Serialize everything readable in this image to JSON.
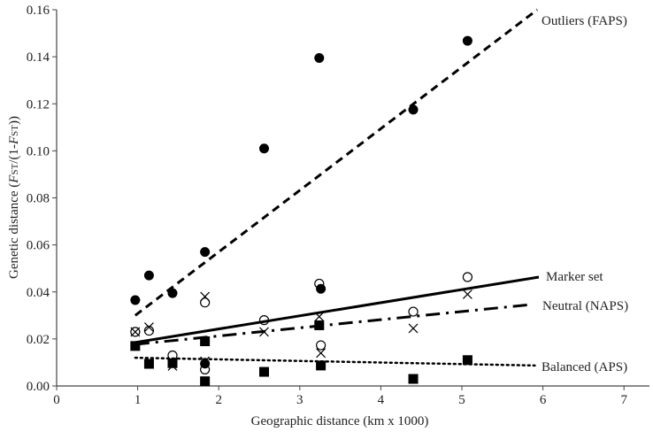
{
  "chart_data": {
    "type": "scatter",
    "title": "",
    "xlabel": "Geographic distance (km x 1000)",
    "ylabel": "Genetic distance (FST/(1-FST))",
    "xlim": [
      0,
      7.5
    ],
    "ylim": [
      0,
      0.16
    ],
    "x_ticks": [
      "0",
      "1",
      "2",
      "3",
      "4",
      "5",
      "6",
      "7"
    ],
    "y_ticks": [
      "0.00",
      "0.02",
      "0.04",
      "0.06",
      "0.08",
      "0.10",
      "0.12",
      "0.14",
      "0.16"
    ],
    "grid": false,
    "legend_position": "inline-right",
    "series": [
      {
        "name": "Outliers (FAPS)",
        "marker": "filled-circle",
        "line_style": "dashed",
        "points": [
          {
            "x": 0.97,
            "y": 0.0365
          },
          {
            "x": 1.14,
            "y": 0.047
          },
          {
            "x": 1.43,
            "y": 0.0395
          },
          {
            "x": 1.83,
            "y": 0.057
          },
          {
            "x": 1.83,
            "y": 0.0095
          },
          {
            "x": 2.56,
            "y": 0.101
          },
          {
            "x": 3.24,
            "y": 0.1395
          },
          {
            "x": 3.26,
            "y": 0.0413
          },
          {
            "x": 4.4,
            "y": 0.1175
          },
          {
            "x": 5.07,
            "y": 0.1468
          }
        ],
        "trend": {
          "x0": 0.97,
          "y0": 0.03,
          "x1": 5.93,
          "y1": 0.16
        }
      },
      {
        "name": "Marker set",
        "marker": "open-circle",
        "line_style": "solid",
        "points": [
          {
            "x": 0.97,
            "y": 0.023
          },
          {
            "x": 1.14,
            "y": 0.0235
          },
          {
            "x": 1.43,
            "y": 0.013
          },
          {
            "x": 1.83,
            "y": 0.0355
          },
          {
            "x": 1.83,
            "y": 0.007
          },
          {
            "x": 2.56,
            "y": 0.028
          },
          {
            "x": 3.24,
            "y": 0.0435
          },
          {
            "x": 3.26,
            "y": 0.0173
          },
          {
            "x": 4.4,
            "y": 0.0316
          },
          {
            "x": 5.07,
            "y": 0.0463
          }
        ],
        "trend": {
          "x0": 0.97,
          "y0": 0.0185,
          "x1": 5.95,
          "y1": 0.0463
        }
      },
      {
        "name": "Neutral (NAPS)",
        "marker": "cross",
        "line_style": "dash-dot",
        "points": [
          {
            "x": 0.97,
            "y": 0.023
          },
          {
            "x": 1.14,
            "y": 0.025
          },
          {
            "x": 1.43,
            "y": 0.0085
          },
          {
            "x": 1.83,
            "y": 0.038
          },
          {
            "x": 1.83,
            "y": 0.0105
          },
          {
            "x": 2.56,
            "y": 0.023
          },
          {
            "x": 3.24,
            "y": 0.0295
          },
          {
            "x": 3.26,
            "y": 0.014
          },
          {
            "x": 4.4,
            "y": 0.0245
          },
          {
            "x": 5.07,
            "y": 0.039
          }
        ],
        "trend": {
          "x0": 0.97,
          "y0": 0.0177,
          "x1": 5.85,
          "y1": 0.0346
        }
      },
      {
        "name": "Balanced (APS)",
        "marker": "filled-square",
        "line_style": "dotted",
        "points": [
          {
            "x": 0.97,
            "y": 0.017
          },
          {
            "x": 1.14,
            "y": 0.0094
          },
          {
            "x": 1.43,
            "y": 0.0097
          },
          {
            "x": 1.83,
            "y": 0.019
          },
          {
            "x": 1.83,
            "y": 0.002
          },
          {
            "x": 2.56,
            "y": 0.006
          },
          {
            "x": 3.24,
            "y": 0.0258
          },
          {
            "x": 3.26,
            "y": 0.0087
          },
          {
            "x": 4.4,
            "y": 0.003
          },
          {
            "x": 5.07,
            "y": 0.011
          }
        ],
        "trend": {
          "x0": 0.97,
          "y0": 0.012,
          "x1": 5.9,
          "y1": 0.0087
        }
      }
    ],
    "annotations": [
      {
        "text": "Outliers (FAPS)",
        "x": 6.35,
        "y": 0.155
      },
      {
        "text": "Marker set",
        "x": 6.35,
        "y": 0.0465
      },
      {
        "text": "Neutral (NAPS)",
        "x": 6.35,
        "y": 0.0345
      },
      {
        "text": "Balanced (APS)",
        "x": 6.35,
        "y": 0.0085
      }
    ]
  },
  "axes": {
    "xlabel": "Geographic distance (km x 1000)",
    "ylabel_prefix": "Genetic distance (",
    "ylabel_f1": "F",
    "ylabel_st1": "ST",
    "ylabel_mid": "/(1-",
    "ylabel_f2": "F",
    "ylabel_st2": "ST",
    "ylabel_suffix": "))"
  },
  "labels": {
    "outliers": "Outliers (FAPS)",
    "marker_set": "Marker set",
    "neutral": "Neutral (NAPS)",
    "balanced": "Balanced (APS)"
  },
  "colors": {
    "ink": "#000000",
    "axis": "#444444",
    "text": "#222222",
    "background": "#ffffff"
  }
}
